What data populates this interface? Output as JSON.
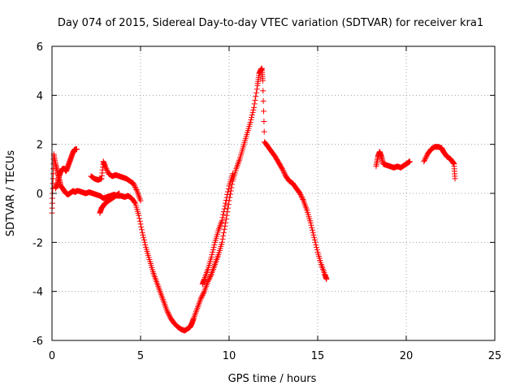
{
  "chart_data": {
    "type": "scatter",
    "title": "Day 074 of 2015, Sidereal Day-to-day VTEC variation (SDTVAR) for receiver kra1",
    "xlabel": "GPS time / hours",
    "ylabel": "SDTVAR / TECUs",
    "xlim": [
      0,
      25
    ],
    "ylim": [
      -6,
      6
    ],
    "xticks": [
      0,
      5,
      10,
      15,
      20,
      25
    ],
    "yticks": [
      -6,
      -4,
      -2,
      0,
      2,
      4,
      6
    ],
    "xtick_labels": [
      "0",
      "5",
      "10",
      "15",
      "20",
      "25"
    ],
    "ytick_labels": [
      "-6",
      "-4",
      "-2",
      "0",
      "2",
      "4",
      "6"
    ],
    "grid": true,
    "marker": "+",
    "color": "#ff0000",
    "series": [
      {
        "name": "kra1-trace-a",
        "x": [
          0.0,
          0.05,
          0.1,
          0.2,
          0.3,
          0.4,
          0.5,
          0.6,
          0.7,
          0.8,
          0.9,
          1.0,
          1.1,
          1.2,
          1.3,
          1.4,
          1.5,
          1.7,
          1.9,
          2.1,
          2.3,
          2.5,
          2.7,
          2.9,
          3.1,
          3.3,
          3.5,
          3.7,
          3.9,
          4.1,
          4.3,
          4.5,
          4.7,
          4.9,
          5.1,
          5.3,
          5.5,
          5.7,
          5.9,
          6.1,
          6.3,
          6.5,
          6.7,
          6.9,
          7.1,
          7.3,
          7.5,
          7.7,
          7.8,
          7.9,
          8.0,
          8.2,
          8.4,
          8.6,
          8.8,
          9.0,
          9.2,
          9.4,
          9.6,
          9.8,
          10.0,
          10.2,
          10.4,
          10.6,
          10.8,
          11.0,
          11.2,
          11.4,
          11.6,
          11.7,
          11.8,
          11.85,
          11.9,
          12.0,
          12.2,
          12.4,
          12.6,
          12.8,
          13.0,
          13.2,
          13.4,
          13.6,
          13.8,
          14.0,
          14.2,
          14.4,
          14.6,
          14.8,
          15.0,
          15.2,
          15.4,
          15.5
        ],
        "y": [
          -0.8,
          0.4,
          1.6,
          1.2,
          0.9,
          0.6,
          0.3,
          0.2,
          0.1,
          0.0,
          -0.05,
          0.0,
          0.05,
          0.1,
          0.05,
          0.1,
          0.1,
          0.05,
          0.0,
          0.05,
          0.0,
          -0.05,
          -0.1,
          -0.2,
          -0.15,
          -0.1,
          -0.05,
          -0.1,
          -0.1,
          -0.15,
          -0.1,
          -0.2,
          -0.4,
          -0.9,
          -1.6,
          -2.2,
          -2.7,
          -3.2,
          -3.6,
          -4.0,
          -4.4,
          -4.8,
          -5.1,
          -5.3,
          -5.45,
          -5.55,
          -5.6,
          -5.5,
          -5.45,
          -5.3,
          -5.1,
          -4.7,
          -4.3,
          -4.0,
          -3.6,
          -3.3,
          -2.9,
          -2.5,
          -2.0,
          -1.2,
          -0.3,
          0.5,
          1.0,
          1.4,
          1.9,
          2.4,
          2.9,
          3.5,
          4.4,
          4.9,
          5.05,
          5.1,
          4.6,
          2.1,
          1.9,
          1.7,
          1.5,
          1.25,
          1.0,
          0.7,
          0.5,
          0.4,
          0.2,
          0.0,
          -0.3,
          -0.7,
          -1.2,
          -1.8,
          -2.4,
          -2.9,
          -3.3,
          -3.5
        ]
      },
      {
        "name": "kra1-trace-b",
        "x": [
          0.2,
          0.3,
          0.4,
          0.5,
          0.6,
          0.7,
          0.8,
          0.9,
          1.0,
          1.1,
          1.2,
          1.3,
          1.4
        ],
        "y": [
          0.2,
          0.4,
          0.7,
          0.9,
          1.0,
          1.0,
          0.9,
          1.1,
          1.3,
          1.5,
          1.7,
          1.8,
          1.8
        ]
      },
      {
        "name": "kra1-trace-c",
        "x": [
          2.2,
          2.4,
          2.6,
          2.8,
          2.9,
          3.0,
          3.2,
          3.4,
          3.6,
          3.8,
          4.0,
          4.2,
          4.4,
          4.6,
          4.8,
          5.0
        ],
        "y": [
          0.7,
          0.6,
          0.55,
          0.6,
          1.3,
          1.1,
          0.8,
          0.7,
          0.75,
          0.7,
          0.65,
          0.6,
          0.5,
          0.4,
          0.1,
          -0.3
        ]
      },
      {
        "name": "kra1-trace-d",
        "x": [
          2.7,
          2.8,
          2.9,
          3.0,
          3.2,
          3.4,
          3.6,
          3.8
        ],
        "y": [
          -0.8,
          -0.6,
          -0.5,
          -0.4,
          -0.3,
          -0.2,
          -0.1,
          0.0
        ]
      },
      {
        "name": "kra1-trace-e",
        "x": [
          8.5,
          8.6,
          8.8,
          9.0,
          9.2,
          9.4,
          9.6,
          9.8,
          10.0,
          10.2
        ],
        "y": [
          -3.7,
          -3.5,
          -3.1,
          -2.6,
          -2.0,
          -1.5,
          -1.1,
          -0.4,
          0.3,
          0.8
        ]
      },
      {
        "name": "kra1-trace-f",
        "x": [
          18.3,
          18.4,
          18.5,
          18.6,
          18.7,
          18.9,
          19.1,
          19.3,
          19.5,
          19.7,
          19.9,
          20.1,
          20.2
        ],
        "y": [
          1.1,
          1.5,
          1.7,
          1.5,
          1.2,
          1.15,
          1.1,
          1.05,
          1.1,
          1.05,
          1.15,
          1.25,
          1.3
        ]
      },
      {
        "name": "kra1-trace-g",
        "x": [
          21.0,
          21.2,
          21.4,
          21.6,
          21.8,
          22.0,
          22.1,
          22.2,
          22.3,
          22.4,
          22.5,
          22.6,
          22.7,
          22.75
        ],
        "y": [
          1.3,
          1.6,
          1.8,
          1.9,
          1.9,
          1.85,
          1.7,
          1.6,
          1.5,
          1.45,
          1.4,
          1.3,
          1.2,
          0.6
        ]
      }
    ]
  }
}
